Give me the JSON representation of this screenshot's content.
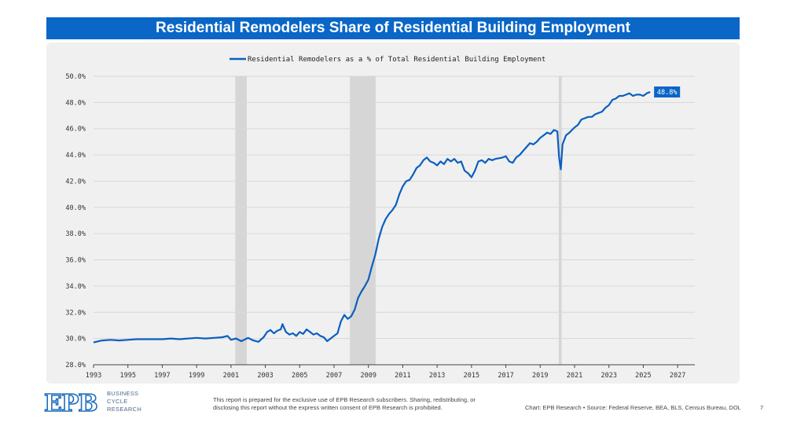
{
  "header": {
    "title": "Residential Remodelers Share of Residential Building Employment"
  },
  "footer": {
    "logo_text": "EPB",
    "logo_lines": [
      "BUSINESS",
      "CYCLE",
      "RESEARCH"
    ],
    "disclaimer": "This report is prepared for the exclusive use of EPB Research subscribers. Sharing, redistributing, or disclosing this report without the express written consent of EPB Research is prohibited.",
    "source": "Chart: EPB Research  •  Source: Federal Reserve, BEA, BLS, Census Bureau, DOL",
    "page_number": "7"
  },
  "colors": {
    "brand": "#0a66c7",
    "line": "#0a5fbf",
    "recession": "#d6d6d6",
    "panel": "#f0f0f0"
  },
  "chart_data": {
    "type": "line",
    "title": "Residential Remodelers Share of Residential Building Employment",
    "xlabel": "",
    "ylabel": "",
    "xlim": [
      1993,
      2028
    ],
    "ylim": [
      28,
      50
    ],
    "x_ticks": [
      "1993",
      "1995",
      "1997",
      "1999",
      "2001",
      "2003",
      "2005",
      "2007",
      "2009",
      "2011",
      "2013",
      "2015",
      "2017",
      "2019",
      "2021",
      "2023",
      "2025",
      "2027"
    ],
    "y_ticks": [
      "28.0%",
      "30.0%",
      "32.0%",
      "34.0%",
      "36.0%",
      "38.0%",
      "40.0%",
      "42.0%",
      "44.0%",
      "46.0%",
      "48.0%",
      "50.0%"
    ],
    "grid": "horizontal",
    "legend_position": "top-center",
    "recessions": [
      [
        2001.25,
        2001.92
      ],
      [
        2007.92,
        2009.42
      ],
      [
        2020.08,
        2020.25
      ]
    ],
    "end_label": "48.8%",
    "series": [
      {
        "name": "Residential Remodelers as a % of Total Residential Building Employment",
        "points": [
          [
            1993.0,
            29.7
          ],
          [
            1993.5,
            29.85
          ],
          [
            1994.0,
            29.9
          ],
          [
            1994.5,
            29.85
          ],
          [
            1995.0,
            29.9
          ],
          [
            1995.5,
            29.95
          ],
          [
            1996.0,
            29.95
          ],
          [
            1996.5,
            29.95
          ],
          [
            1997.0,
            29.95
          ],
          [
            1997.5,
            30.0
          ],
          [
            1998.0,
            29.95
          ],
          [
            1998.5,
            30.0
          ],
          [
            1999.0,
            30.05
          ],
          [
            1999.5,
            30.0
          ],
          [
            2000.0,
            30.05
          ],
          [
            2000.5,
            30.1
          ],
          [
            2000.8,
            30.2
          ],
          [
            2001.0,
            29.9
          ],
          [
            2001.3,
            30.0
          ],
          [
            2001.6,
            29.8
          ],
          [
            2002.0,
            30.05
          ],
          [
            2002.3,
            29.85
          ],
          [
            2002.6,
            29.75
          ],
          [
            2002.9,
            30.1
          ],
          [
            2003.1,
            30.5
          ],
          [
            2003.3,
            30.65
          ],
          [
            2003.5,
            30.4
          ],
          [
            2003.7,
            30.6
          ],
          [
            2003.9,
            30.7
          ],
          [
            2004.0,
            31.1
          ],
          [
            2004.2,
            30.5
          ],
          [
            2004.4,
            30.3
          ],
          [
            2004.6,
            30.4
          ],
          [
            2004.8,
            30.2
          ],
          [
            2005.0,
            30.5
          ],
          [
            2005.2,
            30.35
          ],
          [
            2005.4,
            30.7
          ],
          [
            2005.6,
            30.5
          ],
          [
            2005.8,
            30.3
          ],
          [
            2006.0,
            30.4
          ],
          [
            2006.2,
            30.2
          ],
          [
            2006.4,
            30.1
          ],
          [
            2006.6,
            29.8
          ],
          [
            2006.8,
            30.0
          ],
          [
            2007.0,
            30.2
          ],
          [
            2007.2,
            30.4
          ],
          [
            2007.4,
            31.3
          ],
          [
            2007.6,
            31.8
          ],
          [
            2007.8,
            31.5
          ],
          [
            2008.0,
            31.7
          ],
          [
            2008.2,
            32.2
          ],
          [
            2008.4,
            33.1
          ],
          [
            2008.6,
            33.6
          ],
          [
            2008.8,
            34.0
          ],
          [
            2009.0,
            34.5
          ],
          [
            2009.2,
            35.5
          ],
          [
            2009.4,
            36.4
          ],
          [
            2009.6,
            37.6
          ],
          [
            2009.8,
            38.5
          ],
          [
            2010.0,
            39.1
          ],
          [
            2010.2,
            39.5
          ],
          [
            2010.4,
            39.8
          ],
          [
            2010.6,
            40.2
          ],
          [
            2010.8,
            41.0
          ],
          [
            2011.0,
            41.6
          ],
          [
            2011.2,
            42.0
          ],
          [
            2011.4,
            42.1
          ],
          [
            2011.6,
            42.5
          ],
          [
            2011.8,
            43.0
          ],
          [
            2012.0,
            43.2
          ],
          [
            2012.2,
            43.6
          ],
          [
            2012.4,
            43.8
          ],
          [
            2012.6,
            43.5
          ],
          [
            2012.8,
            43.4
          ],
          [
            2013.0,
            43.2
          ],
          [
            2013.2,
            43.5
          ],
          [
            2013.4,
            43.3
          ],
          [
            2013.6,
            43.7
          ],
          [
            2013.8,
            43.5
          ],
          [
            2014.0,
            43.7
          ],
          [
            2014.2,
            43.4
          ],
          [
            2014.4,
            43.5
          ],
          [
            2014.6,
            42.8
          ],
          [
            2014.8,
            42.6
          ],
          [
            2015.0,
            42.3
          ],
          [
            2015.2,
            42.8
          ],
          [
            2015.4,
            43.5
          ],
          [
            2015.6,
            43.6
          ],
          [
            2015.8,
            43.4
          ],
          [
            2016.0,
            43.7
          ],
          [
            2016.2,
            43.6
          ],
          [
            2016.4,
            43.7
          ],
          [
            2016.6,
            43.75
          ],
          [
            2016.8,
            43.8
          ],
          [
            2017.0,
            43.9
          ],
          [
            2017.2,
            43.5
          ],
          [
            2017.4,
            43.4
          ],
          [
            2017.6,
            43.8
          ],
          [
            2017.8,
            44.0
          ],
          [
            2018.0,
            44.3
          ],
          [
            2018.2,
            44.6
          ],
          [
            2018.4,
            44.9
          ],
          [
            2018.6,
            44.8
          ],
          [
            2018.8,
            45.0
          ],
          [
            2019.0,
            45.3
          ],
          [
            2019.2,
            45.5
          ],
          [
            2019.4,
            45.7
          ],
          [
            2019.6,
            45.6
          ],
          [
            2019.8,
            45.9
          ],
          [
            2020.0,
            45.8
          ],
          [
            2020.1,
            43.8
          ],
          [
            2020.2,
            42.9
          ],
          [
            2020.3,
            44.8
          ],
          [
            2020.5,
            45.5
          ],
          [
            2020.7,
            45.7
          ],
          [
            2021.0,
            46.1
          ],
          [
            2021.2,
            46.3
          ],
          [
            2021.4,
            46.7
          ],
          [
            2021.6,
            46.8
          ],
          [
            2021.8,
            46.9
          ],
          [
            2022.0,
            46.9
          ],
          [
            2022.2,
            47.1
          ],
          [
            2022.4,
            47.2
          ],
          [
            2022.6,
            47.3
          ],
          [
            2022.8,
            47.6
          ],
          [
            2023.0,
            47.8
          ],
          [
            2023.2,
            48.2
          ],
          [
            2023.4,
            48.3
          ],
          [
            2023.6,
            48.5
          ],
          [
            2023.8,
            48.5
          ],
          [
            2024.0,
            48.6
          ],
          [
            2024.2,
            48.7
          ],
          [
            2024.4,
            48.5
          ],
          [
            2024.6,
            48.6
          ],
          [
            2024.8,
            48.6
          ],
          [
            2025.0,
            48.5
          ],
          [
            2025.2,
            48.7
          ],
          [
            2025.4,
            48.8
          ]
        ]
      }
    ]
  }
}
